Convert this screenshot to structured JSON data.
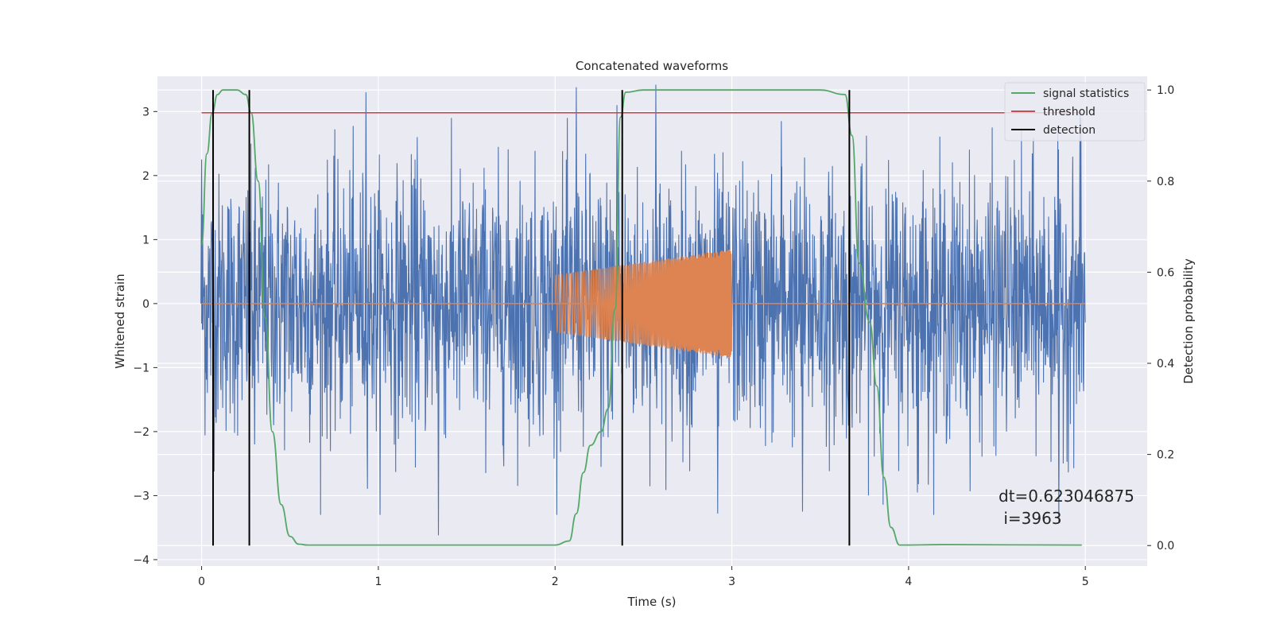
{
  "chart_data": {
    "type": "line",
    "title": "Concatenated waveforms",
    "xlabel": "Time (s)",
    "ylabel_left": "Whitened strain",
    "ylabel_right": "Detection probability",
    "xlim": [
      -0.25,
      5.35
    ],
    "ylim_left": [
      -4.1,
      3.55
    ],
    "ylim_right": [
      -0.045,
      1.03
    ],
    "xticks": [
      0,
      1,
      2,
      3,
      4,
      5
    ],
    "yticks_left": [
      -4,
      -3,
      -2,
      -1,
      0,
      1,
      2,
      3
    ],
    "yticks_right": [
      0.0,
      0.2,
      0.4,
      0.6,
      0.8,
      1.0
    ],
    "grid": true,
    "legend_position": "top-right",
    "colors": {
      "background": "#eaeaf2",
      "grid": "#ffffff",
      "noise": "#4c72b0",
      "waveform": "#dd8452",
      "signal_statistics": "#55a868",
      "threshold": "#c44e52",
      "detection": "#000000"
    },
    "series": [
      {
        "name": "",
        "role": "whitened-noise",
        "axis": "left",
        "x_range": [
          0,
          5
        ],
        "envelope_top_peaks": [
          [
            0.0,
            2.25
          ],
          [
            0.93,
            3.3
          ],
          [
            1.22,
            2.6
          ],
          [
            2.12,
            3.38
          ],
          [
            2.35,
            3.1
          ],
          [
            2.57,
            3.42
          ],
          [
            3.28,
            2.85
          ],
          [
            4.97,
            2.95
          ]
        ],
        "envelope_bottom_peaks": [
          [
            0.3,
            -2.2
          ],
          [
            1.34,
            -3.62
          ],
          [
            2.26,
            -2.55
          ],
          [
            2.92,
            -3.28
          ],
          [
            3.4,
            -3.25
          ],
          [
            4.05,
            -2.95
          ],
          [
            4.85,
            -3.42
          ]
        ],
        "typical_amplitude": 1.0
      },
      {
        "name": "",
        "role": "injected-waveform",
        "axis": "left",
        "x_range": [
          2.0,
          3.0
        ],
        "amplitude_start": 0.45,
        "amplitude_end": 0.85,
        "baseline": 0.0
      },
      {
        "name": "signal statistics",
        "axis": "right",
        "x": [
          0.0,
          0.03,
          0.06,
          0.09,
          0.12,
          0.2,
          0.25,
          0.28,
          0.32,
          0.36,
          0.4,
          0.45,
          0.5,
          0.55,
          0.6,
          2.0,
          2.08,
          2.12,
          2.16,
          2.2,
          2.26,
          2.3,
          2.34,
          2.37,
          2.4,
          2.5,
          3.5,
          3.64,
          3.68,
          3.72,
          3.78,
          3.82,
          3.86,
          3.9,
          3.95,
          4.2,
          4.98
        ],
        "y": [
          0.66,
          0.86,
          0.95,
          0.99,
          1.0,
          1.0,
          0.99,
          0.95,
          0.8,
          0.5,
          0.25,
          0.09,
          0.02,
          0.003,
          0.001,
          0.001,
          0.01,
          0.07,
          0.16,
          0.22,
          0.25,
          0.3,
          0.52,
          0.94,
          0.995,
          1.0,
          1.0,
          0.99,
          0.9,
          0.62,
          0.49,
          0.35,
          0.15,
          0.04,
          0.001,
          0.002,
          0.001
        ]
      },
      {
        "name": "threshold",
        "axis": "right",
        "x": [
          0.0,
          4.98
        ],
        "y": [
          0.95,
          0.95
        ]
      },
      {
        "name": "detection",
        "axis": "right",
        "x_lines": [
          0.065,
          0.27,
          2.38,
          3.665
        ],
        "y_range": [
          0.0,
          1.0
        ]
      }
    ],
    "annotations": [
      {
        "text": "dt=0.623046875",
        "x": 4.5,
        "y": -3.1
      },
      {
        "text": " i=3963",
        "x": 4.5,
        "y": -3.4
      }
    ]
  }
}
